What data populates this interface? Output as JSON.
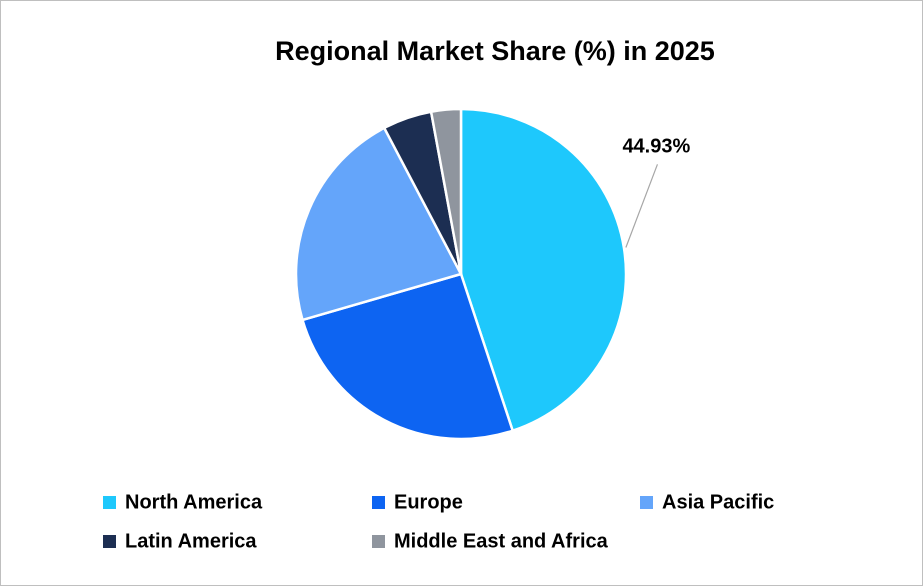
{
  "chart_data": {
    "type": "pie",
    "title": "Regional Market Share (%) in 2025",
    "categories": [
      "North America",
      "Europe",
      "Asia Pacific",
      "Latin America",
      "Middle East and Africa"
    ],
    "values": [
      44.93,
      25.58,
      21.79,
      4.8,
      2.9
    ],
    "value_labels": [
      "44.93%",
      null,
      null,
      null,
      null
    ],
    "colors": [
      "#1ec8fc",
      "#0d64f2",
      "#64a5fa",
      "#1c2e52",
      "#8f959e"
    ],
    "legend": "bottom"
  }
}
